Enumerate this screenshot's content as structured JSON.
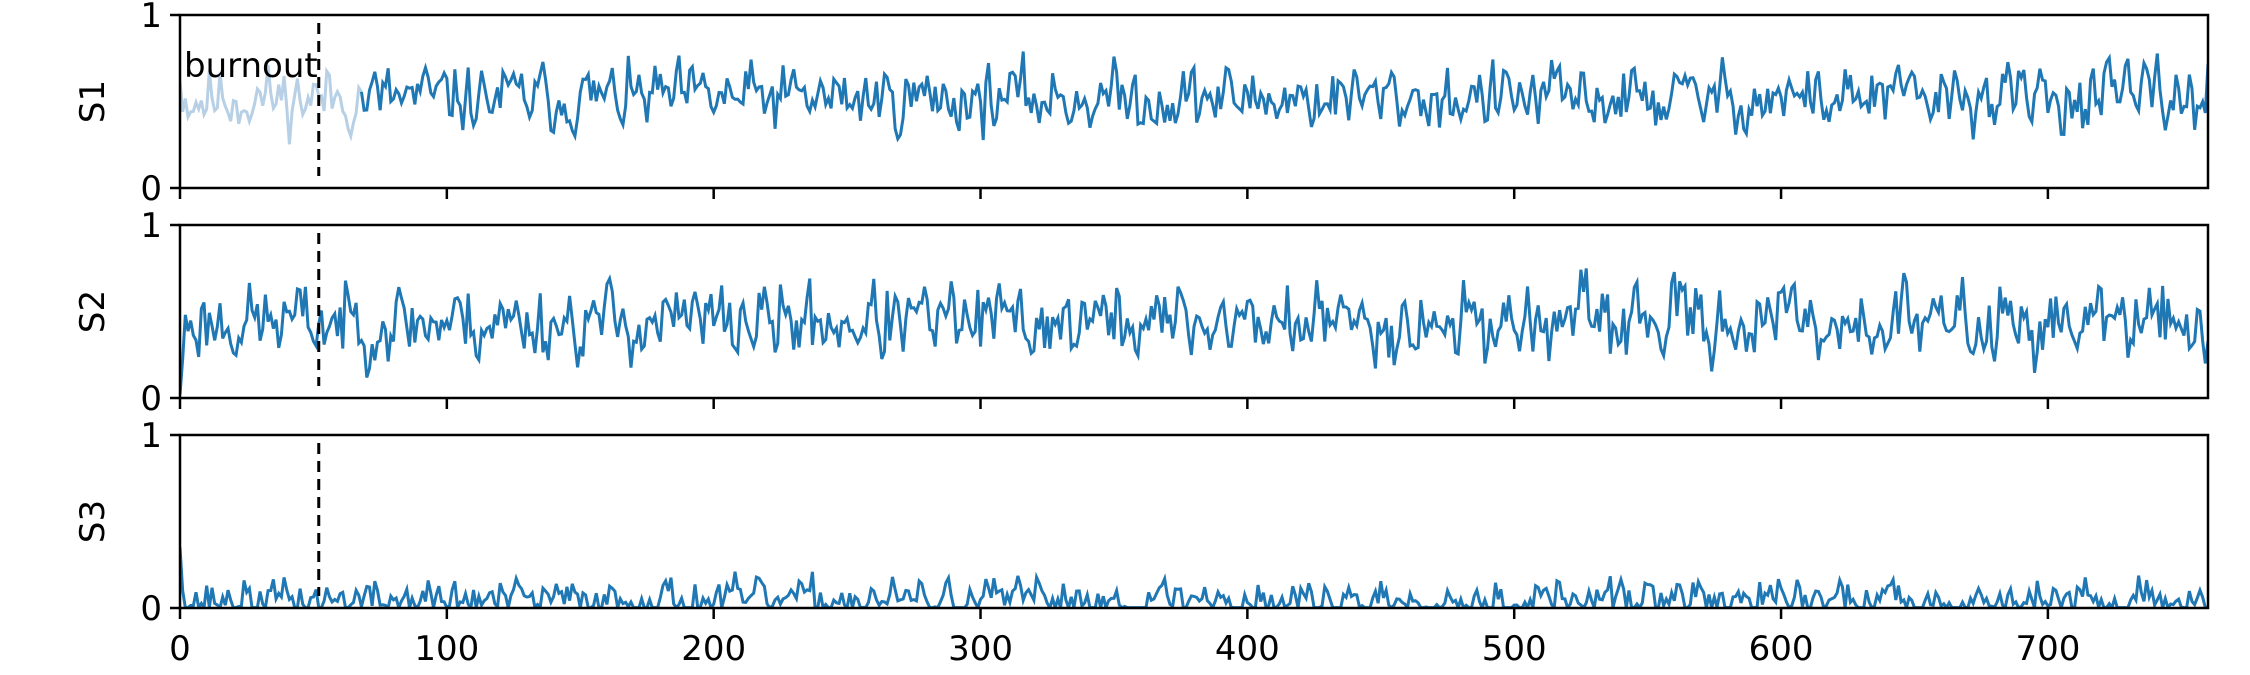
{
  "chart_data": [
    {
      "type": "line",
      "ylabel": "S1",
      "xlim": [
        0,
        760
      ],
      "ylim": [
        0,
        1
      ],
      "x_ticks": [],
      "y_ticks": [
        0,
        1
      ],
      "burnin_x": 52,
      "annotation": "burnout",
      "color": "#1f77b4",
      "burnin_color": "#b7d0e6",
      "series": {
        "mean": 0.52,
        "amplitude": 0.13,
        "start": 0.62,
        "seed": 11
      }
    },
    {
      "type": "line",
      "ylabel": "S2",
      "xlim": [
        0,
        760
      ],
      "ylim": [
        0,
        1
      ],
      "x_ticks": [],
      "y_ticks": [
        0,
        1
      ],
      "burnin_x": 52,
      "color": "#1f77b4",
      "series": {
        "mean": 0.44,
        "amplitude": 0.15,
        "start": 0.02,
        "seed": 23
      }
    },
    {
      "type": "line",
      "ylabel": "S3",
      "xlim": [
        0,
        760
      ],
      "ylim": [
        0,
        1
      ],
      "x_ticks": [
        0,
        100,
        200,
        300,
        400,
        500,
        600,
        700
      ],
      "y_ticks": [
        0,
        1
      ],
      "burnin_x": 52,
      "color": "#1f77b4",
      "series": {
        "mean": 0.045,
        "amplitude": 0.08,
        "start": 0.35,
        "seed": 37
      }
    }
  ]
}
